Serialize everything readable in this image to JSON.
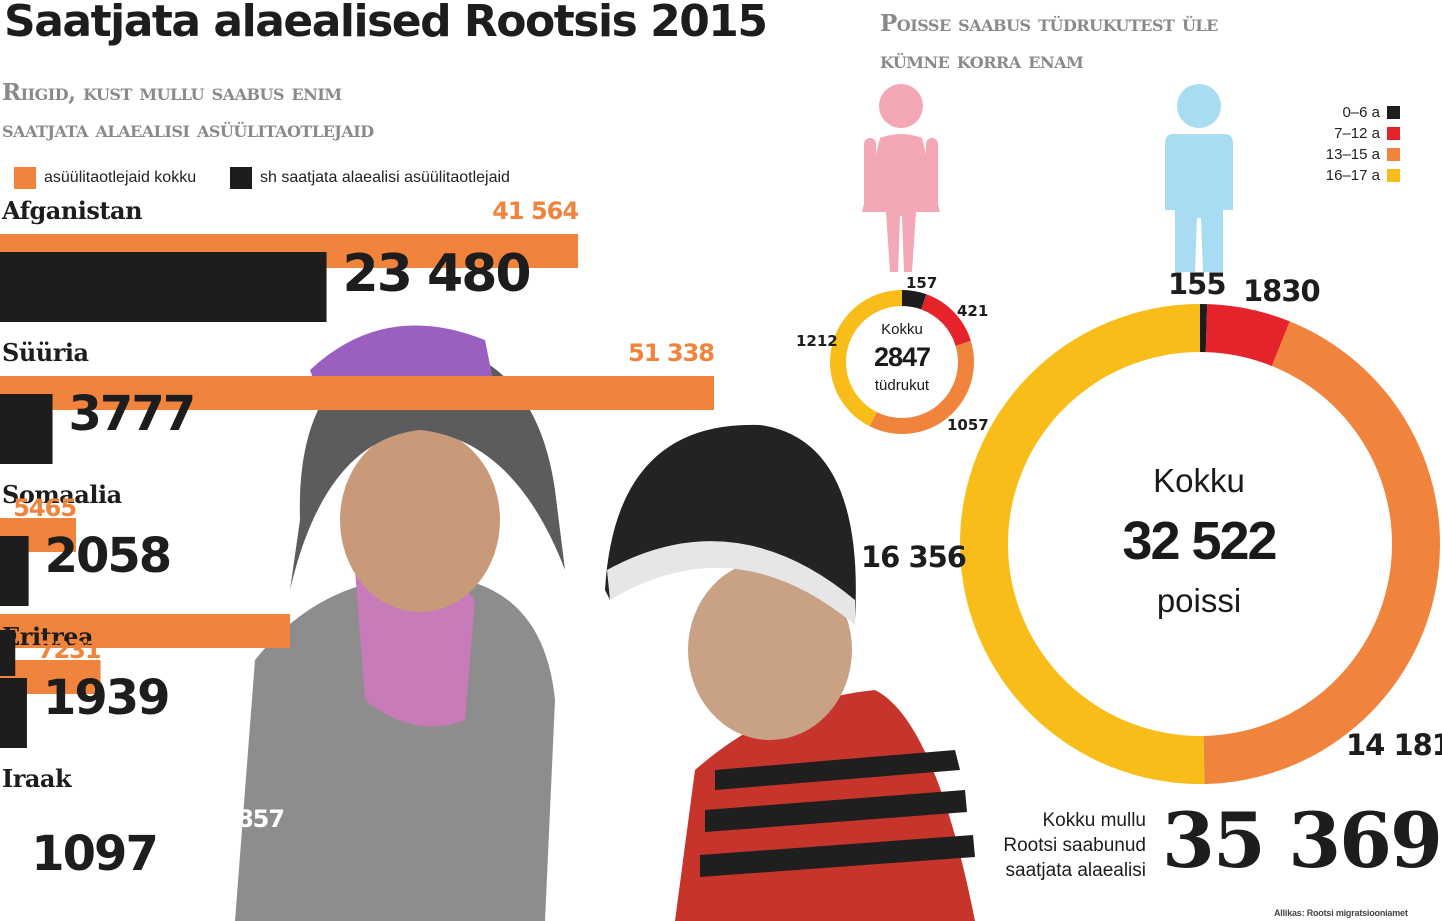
{
  "title": "Saatjata alaealised Rootsis 2015",
  "left_subtitle_line1": "Riigid, kust mullu saabus enim",
  "left_subtitle_line2": "saatjata alaealisi asüülitaotlejaid",
  "legend": {
    "total_label": "asüülitaotlejaid kokku",
    "minors_label": "sh saatjata alaealisi asüülitaotlejaid",
    "total_color": "#f0843c",
    "minors_color": "#1d1d1d"
  },
  "right_subtitle_line1": "Poisse saabus tüdrukutest üle",
  "right_subtitle_line2": "kümne korra enam",
  "girls_icon": "female-figure-icon",
  "boys_icon": "male-figure-icon",
  "girls_center": {
    "top": "Kokku",
    "value": "2847",
    "bottom": "tüdrukut"
  },
  "boys_center": {
    "top": "Kokku",
    "value": "32 522",
    "bottom": "poissi"
  },
  "age_groups": [
    {
      "label": "0–6 a",
      "color": "#1d1d1d"
    },
    {
      "label": "7–12 a",
      "color": "#e4232b"
    },
    {
      "label": "13–15 a",
      "color": "#f0843c"
    },
    {
      "label": "16–17 a",
      "color": "#f8bd18"
    }
  ],
  "girls_labels": [
    "157",
    "421",
    "1057",
    "1212"
  ],
  "boys_labels": [
    "155",
    "1830",
    "14 181",
    "16 356"
  ],
  "total_text_line1": "Kokku mullu",
  "total_text_line2": "Rootsi saabunud",
  "total_text_line3": "saatjata alaealisi",
  "total_value": "35 369",
  "source": "Allikas: Rootsi migratsiooniamet",
  "chart_data": [
    {
      "type": "bar",
      "categories": [
        "Afganistan",
        "Süüria",
        "Somaalia",
        "Eritrea",
        "Iraak"
      ],
      "series": [
        {
          "name": "asüülitaotlejaid kokku",
          "values": [
            41564,
            51338,
            5465,
            7231,
            20857
          ]
        },
        {
          "name": "sh saatjata alaealisi asüülitaotlejaid",
          "values": [
            23480,
            3777,
            2058,
            1939,
            1097
          ]
        }
      ],
      "labels_total": [
        "41 564",
        "51 338",
        "5465",
        "7231",
        "20 857"
      ],
      "labels_minors": [
        "23 480",
        "3777",
        "2058",
        "1939",
        "1097"
      ],
      "orientation": "horizontal"
    },
    {
      "type": "pie",
      "categories": [
        "0–6 a",
        "7–12 a",
        "13–15 a",
        "16–17 a"
      ],
      "values": [
        157,
        421,
        1057,
        1212
      ],
      "total": 2847
    },
    {
      "type": "pie",
      "categories": [
        "0–6 a",
        "7–12 a",
        "13–15 a",
        "16–17 a"
      ],
      "values": [
        155,
        1830,
        14181,
        16356
      ],
      "total": 32522
    }
  ]
}
